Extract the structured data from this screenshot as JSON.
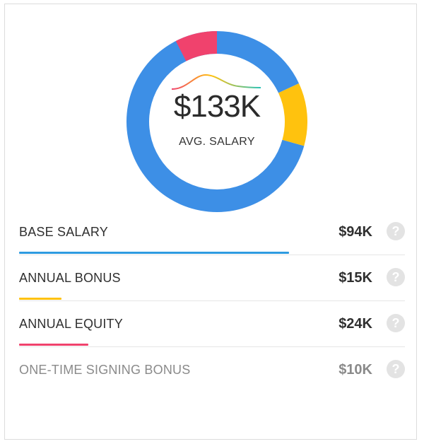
{
  "summary": {
    "value": "$133K",
    "label": "AVG. SALARY"
  },
  "chart_data": {
    "type": "pie",
    "total": 133,
    "series": [
      {
        "label": "BASE SALARY",
        "value": 94,
        "color": "#3d8fe6"
      },
      {
        "label": "ANNUAL BONUS",
        "value": 15,
        "color": "#ffc20e"
      },
      {
        "label": "ANNUAL EQUITY",
        "value": 24,
        "color": "#3d8fe6"
      },
      {
        "label": "ONE-TIME SIGNING BONUS",
        "value": 10,
        "color": "#f0426d"
      }
    ]
  },
  "rows": [
    {
      "label": "BASE SALARY",
      "value": "$94K",
      "bar_color": "#2e9be0",
      "bar_fraction": 0.7,
      "muted": false
    },
    {
      "label": "ANNUAL BONUS",
      "value": "$15K",
      "bar_color": "#ffc20e",
      "bar_fraction": 0.11,
      "muted": false
    },
    {
      "label": "ANNUAL EQUITY",
      "value": "$24K",
      "bar_color": "#f0426d",
      "bar_fraction": 0.18,
      "muted": false
    },
    {
      "label": "ONE-TIME SIGNING BONUS",
      "value": "$10K",
      "bar_color": "#ffffff",
      "bar_fraction": 0,
      "muted": true
    }
  ],
  "help_icon": "question-circle-icon",
  "help_glyph": "?"
}
